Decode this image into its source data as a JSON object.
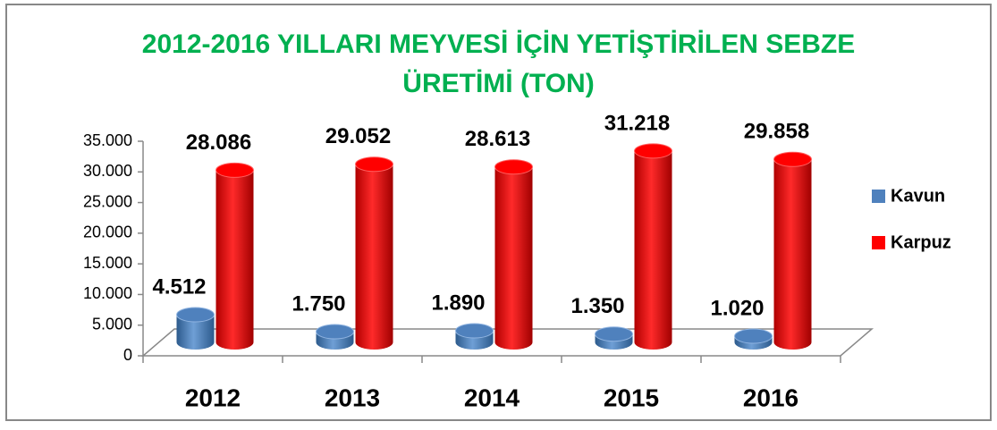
{
  "chart_data": {
    "type": "bar3d",
    "title": "2012-2016 YILLARI MEYVESİ İÇİN YETİŞTİRİLEN SEBZE ÜRETİMİ (TON)",
    "categories": [
      "2012",
      "2013",
      "2014",
      "2015",
      "2016"
    ],
    "series": [
      {
        "name": "Kavun",
        "color": "#4f81bd",
        "values": [
          4512,
          1750,
          1890,
          1350,
          1020
        ],
        "value_labels": [
          "4.512",
          "1.750",
          "1.890",
          "1.350",
          "1.020"
        ]
      },
      {
        "name": "Karpuz",
        "color": "#ff0000",
        "values": [
          28086,
          29052,
          28613,
          31218,
          29858
        ],
        "value_labels": [
          "28.086",
          "29.052",
          "28.613",
          "31.218",
          "29.858"
        ]
      }
    ],
    "ylim": [
      0,
      35000
    ],
    "yticks": [
      0,
      {
        "value": 5000,
        "label": "5.000"
      },
      {
        "value": 10000,
        "label": "10.000"
      },
      {
        "value": 15000,
        "label": "15.000"
      },
      {
        "value": 20000,
        "label": "20.000"
      },
      {
        "value": 25000,
        "label": "25.000"
      },
      {
        "value": 30000,
        "label": "30.000"
      },
      {
        "value": 35000,
        "label": "35.000"
      }
    ],
    "legend": "right"
  }
}
